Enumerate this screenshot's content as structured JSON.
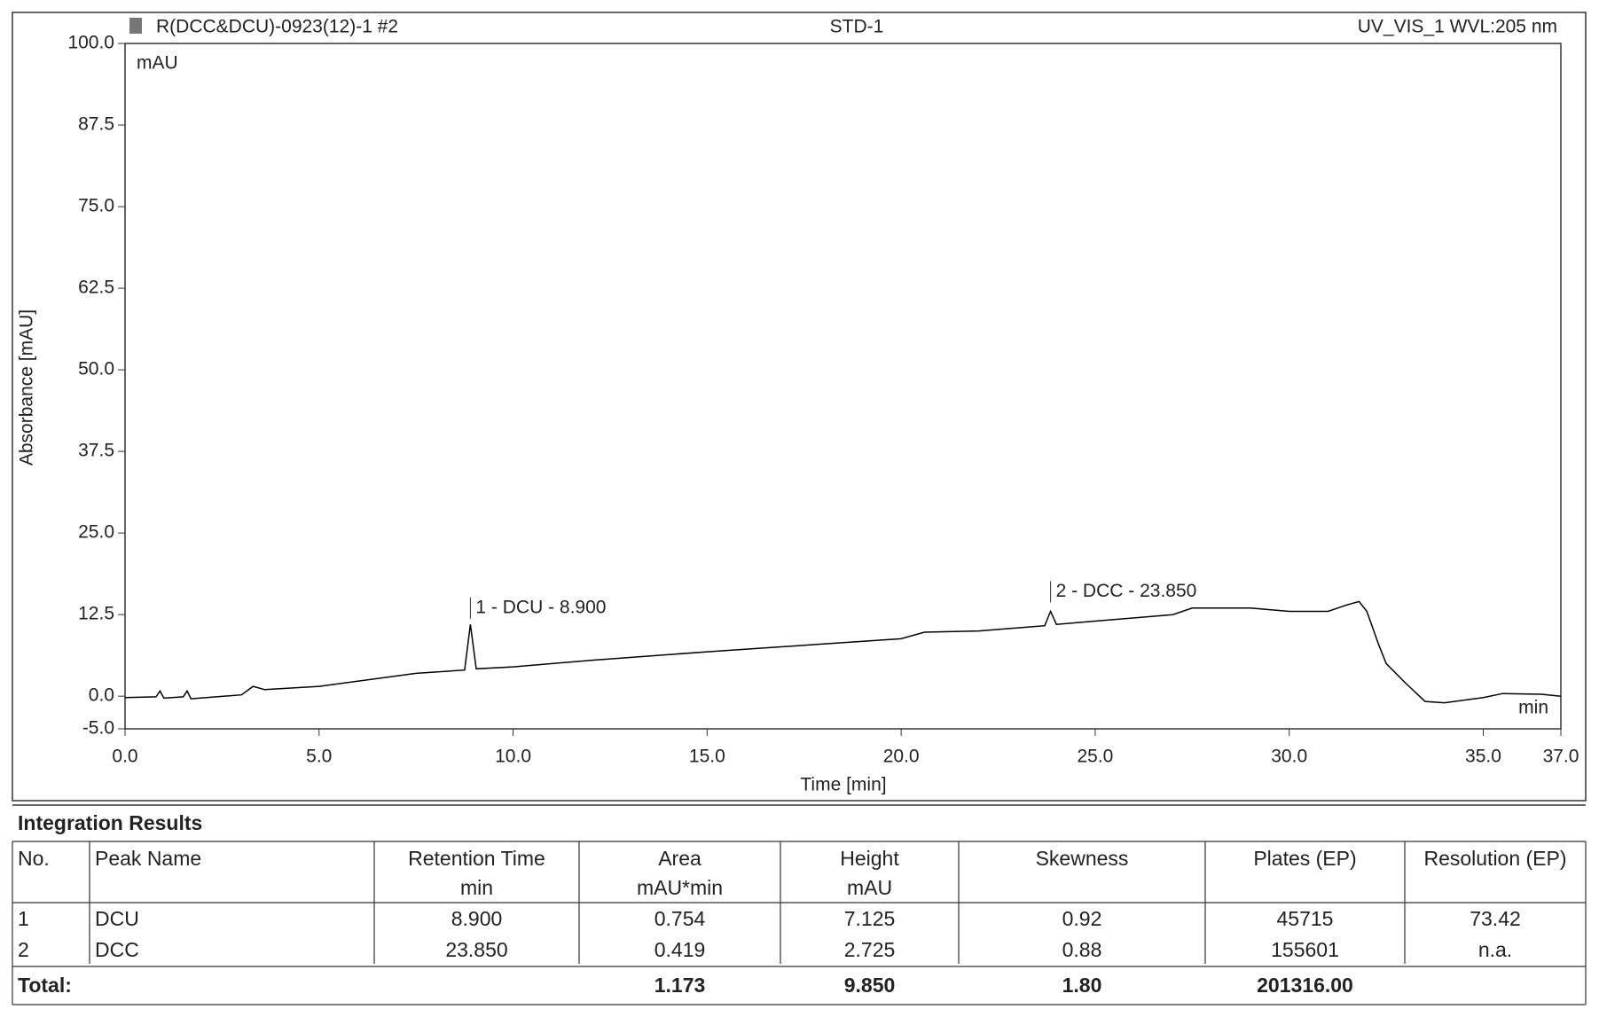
{
  "chart_data": {
    "type": "line",
    "title": "STD-1",
    "sample": "R(DCC&DCU)-0923(12)-1 #2",
    "detector": "UV_VIS_1 WVL:205 nm",
    "y_unit": "mAU",
    "x_unit": "min",
    "y_label": "Absorbance [mAU]",
    "x_label": "Time [min]",
    "color": "#000000",
    "xlim": [
      0,
      37
    ],
    "ylim": [
      -5,
      100
    ],
    "xticks": [
      {
        "value": 0,
        "label": "0.0"
      },
      {
        "value": 5,
        "label": "5.0"
      },
      {
        "value": 10,
        "label": "10.0"
      },
      {
        "value": 15,
        "label": "15.0"
      },
      {
        "value": 20,
        "label": "20.0"
      },
      {
        "value": 25,
        "label": "25.0"
      },
      {
        "value": 30,
        "label": "30.0"
      },
      {
        "value": 35,
        "label": "35.0"
      },
      {
        "value": 37,
        "label": "37.0"
      }
    ],
    "yticks": [
      {
        "value": -5,
        "label": "-5.0"
      },
      {
        "value": 0,
        "label": "0.0"
      },
      {
        "value": 12.5,
        "label": "12.5"
      },
      {
        "value": 25,
        "label": "25.0"
      },
      {
        "value": 37.5,
        "label": "37.5"
      },
      {
        "value": 50,
        "label": "50.0"
      },
      {
        "value": 62.5,
        "label": "62.5"
      },
      {
        "value": 75,
        "label": "75.0"
      },
      {
        "value": 87.5,
        "label": "87.5"
      },
      {
        "value": 100,
        "label": "100.0"
      }
    ],
    "x": [
      0,
      0.8,
      0.9,
      1.0,
      1.5,
      1.6,
      1.7,
      3.0,
      3.3,
      3.6,
      5,
      7.5,
      8.75,
      8.9,
      9.05,
      10,
      12,
      15,
      18,
      20,
      20.6,
      22,
      23.7,
      23.85,
      24.0,
      25,
      27,
      27.5,
      29,
      30,
      31,
      31.5,
      31.8,
      32.0,
      32.3,
      32.5,
      33,
      33.5,
      34,
      35,
      35.5,
      36.5,
      37
    ],
    "values": [
      -0.2,
      -0.1,
      0.8,
      -0.3,
      -0.1,
      0.8,
      -0.4,
      0.2,
      1.5,
      1.0,
      1.5,
      3.5,
      4.0,
      11.0,
      4.2,
      4.5,
      5.5,
      6.8,
      8.0,
      8.8,
      9.8,
      10.0,
      10.8,
      13.0,
      11.0,
      11.5,
      12.5,
      13.5,
      13.5,
      13.0,
      13.0,
      14.0,
      14.5,
      13.0,
      8.0,
      5.0,
      2.0,
      -0.8,
      -1.0,
      -0.2,
      0.4,
      0.3,
      0.0
    ],
    "annotations": [
      {
        "text": "1 - DCU - 8.900",
        "x": 8.9,
        "y": 13.5
      },
      {
        "text": "2 - DCC - 23.850",
        "x": 23.85,
        "y": 16
      }
    ]
  },
  "table": {
    "title": "Integration Results",
    "columns": [
      [
        "No."
      ],
      [
        "Peak Name"
      ],
      [
        "Retention Time",
        "min"
      ],
      [
        "Area",
        "mAU*min"
      ],
      [
        "Height",
        "mAU"
      ],
      [
        "Skewness"
      ],
      [
        "Plates (EP)"
      ],
      [
        "Resolution (EP)"
      ]
    ],
    "rows": [
      [
        "1",
        "DCU",
        "8.900",
        "0.754",
        "7.125",
        "0.92",
        "45715",
        "73.42"
      ],
      [
        "2",
        "DCC",
        "23.850",
        "0.419",
        "2.725",
        "0.88",
        "155601",
        "n.a."
      ]
    ],
    "total": {
      "label": "Total:",
      "area": "1.173",
      "height": "9.850",
      "skewness": "1.80",
      "plates": "201316.00"
    }
  }
}
